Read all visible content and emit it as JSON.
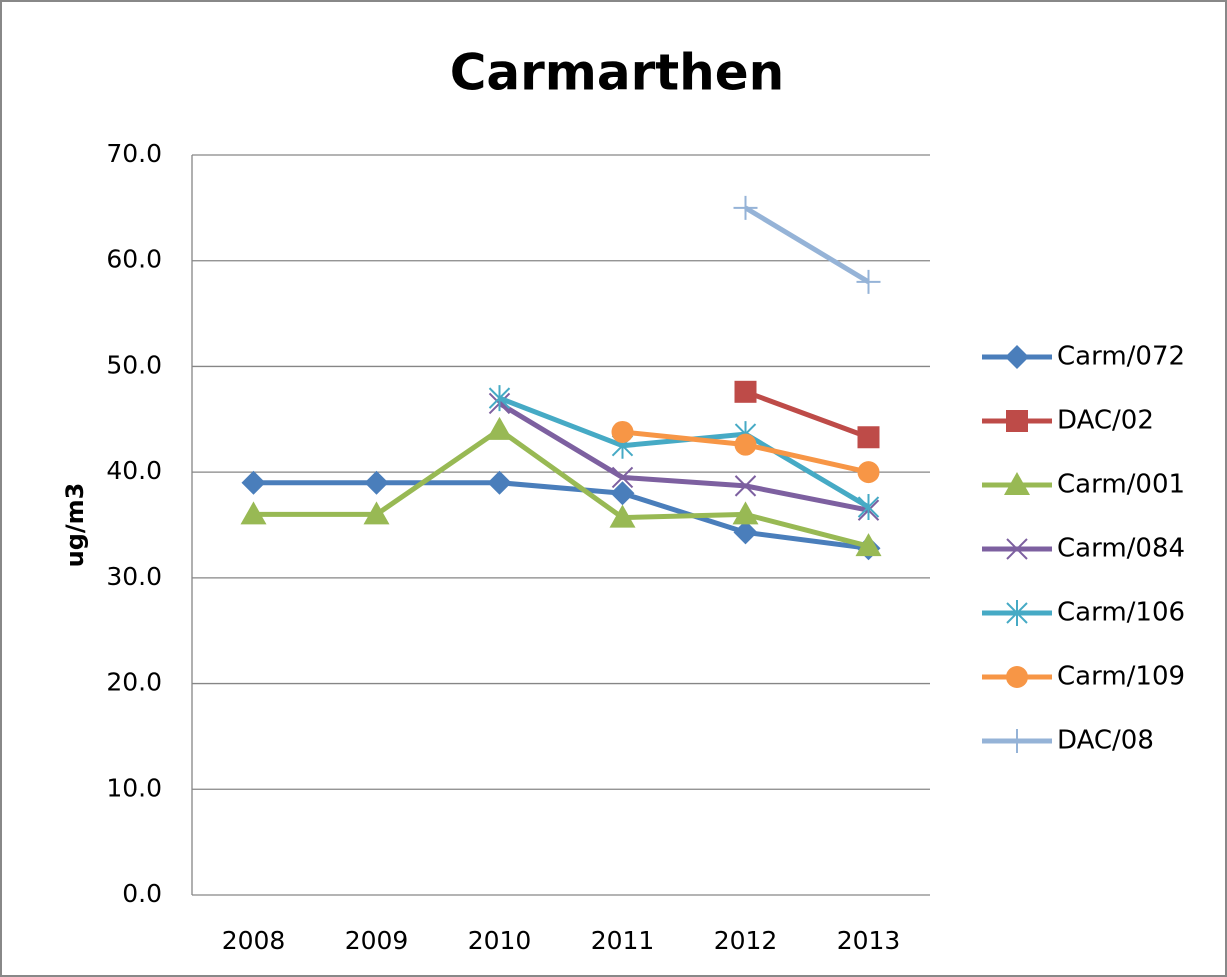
{
  "chart_data": {
    "type": "line",
    "title": "Carmarthen",
    "y_label": "ug/m3",
    "categories": [
      "2008",
      "2009",
      "2010",
      "2011",
      "2012",
      "2013"
    ],
    "ylim": [
      0,
      70
    ],
    "yticks": [
      {
        "value": 0,
        "label": "0.0"
      },
      {
        "value": 10,
        "label": "10.0"
      },
      {
        "value": 20,
        "label": "20.0"
      },
      {
        "value": 30,
        "label": "30.0"
      },
      {
        "value": 40,
        "label": "40.0"
      },
      {
        "value": 50,
        "label": "50.0"
      },
      {
        "value": 60,
        "label": "60.0"
      },
      {
        "value": 70,
        "label": "70.0"
      }
    ],
    "grid": true,
    "legend": "right",
    "series": [
      {
        "name": "Carm/072",
        "color": "#4a7ebb",
        "marker": "diamond",
        "values": [
          39.0,
          39.0,
          39.0,
          38.0,
          34.3,
          32.8
        ]
      },
      {
        "name": "DAC/02",
        "color": "#be4b48",
        "marker": "square",
        "values": [
          null,
          null,
          null,
          null,
          47.6,
          43.3
        ]
      },
      {
        "name": "Carm/001",
        "color": "#98b954",
        "marker": "triangle",
        "values": [
          36.0,
          36.0,
          44.0,
          35.7,
          36.0,
          33.0
        ]
      },
      {
        "name": "Carm/084",
        "color": "#7d60a0",
        "marker": "x",
        "values": [
          null,
          null,
          46.5,
          39.5,
          38.7,
          36.4
        ]
      },
      {
        "name": "Carm/106",
        "color": "#46aac5",
        "marker": "asterisk",
        "values": [
          null,
          null,
          47.0,
          42.5,
          43.6,
          36.7
        ]
      },
      {
        "name": "Carm/109",
        "color": "#f79646",
        "marker": "circle",
        "values": [
          null,
          null,
          null,
          43.8,
          42.6,
          40.0
        ]
      },
      {
        "name": "DAC/08",
        "color": "#95b3d7",
        "marker": "plus",
        "values": [
          null,
          null,
          null,
          null,
          65.0,
          58.0
        ]
      }
    ]
  }
}
